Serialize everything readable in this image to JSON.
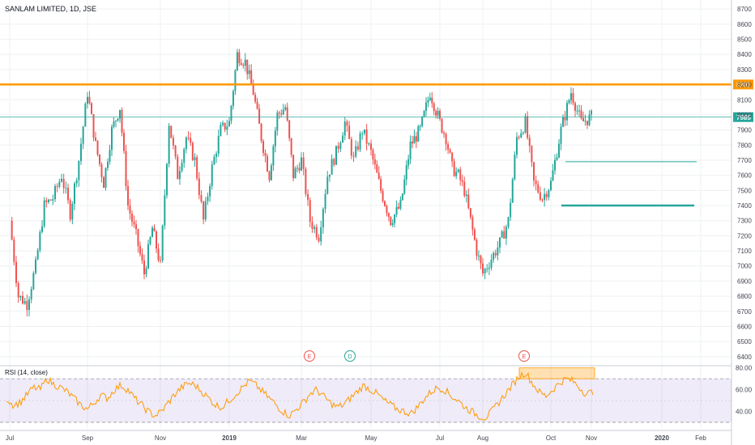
{
  "header": {
    "symbol_title": "SANLAM LIMITED, 1D, JSE"
  },
  "colors": {
    "up": "#26a69a",
    "down": "#ef5350",
    "resistance": "#ff9800",
    "support": "#26a69a",
    "rsi_line": "#ff9800",
    "rsi_band": "#7e57c2",
    "grid": "#eef0f3",
    "last_price_line": "#26a69a"
  },
  "chart_data": [
    {
      "type": "candlestick",
      "title": "SANLAM LIMITED, 1D, JSE",
      "y_ticks": [
        "8700",
        "8600",
        "8500",
        "8400",
        "8300",
        "8200",
        "8100",
        "8000",
        "7900",
        "7800",
        "7700",
        "7600",
        "7500",
        "7400",
        "7300",
        "7200",
        "7100",
        "7000",
        "6900",
        "6800",
        "6700",
        "6600",
        "6500",
        "6400"
      ],
      "ylim": [
        6340,
        8760
      ],
      "x_ticks": [
        "Jul",
        "Sep",
        "Nov",
        "2019",
        "Mar",
        "May",
        "Jul",
        "Aug",
        "Oct",
        "Nov",
        "2020",
        "Feb"
      ],
      "close_path": [
        [
          "Jul",
          7300
        ],
        [
          "",
          6800
        ],
        [
          "",
          6750
        ],
        [
          "",
          7000
        ],
        [
          "",
          7400
        ],
        [
          "",
          7450
        ],
        [
          "",
          7600
        ],
        [
          "",
          7350
        ],
        [
          "",
          7700
        ],
        [
          "Sep",
          8150
        ],
        [
          "",
          7800
        ],
        [
          "",
          7550
        ],
        [
          "",
          7900
        ],
        [
          "",
          8050
        ],
        [
          "",
          7400
        ],
        [
          "",
          7200
        ],
        [
          "",
          6950
        ],
        [
          "",
          7250
        ],
        [
          "Nov",
          7000
        ],
        [
          "",
          7950
        ],
        [
          "",
          7600
        ],
        [
          "",
          7850
        ],
        [
          "",
          7700
        ],
        [
          "",
          7300
        ],
        [
          "",
          7650
        ],
        [
          "",
          7900
        ],
        [
          "2019",
          7950
        ],
        [
          "",
          8400
        ],
        [
          "",
          8350
        ],
        [
          "",
          8150
        ],
        [
          "",
          7850
        ],
        [
          "",
          7600
        ],
        [
          "",
          8000
        ],
        [
          "",
          8050
        ],
        [
          "",
          7600
        ],
        [
          "Mar",
          7700
        ],
        [
          "",
          7300
        ],
        [
          "",
          7200
        ],
        [
          "",
          7600
        ],
        [
          "",
          7750
        ],
        [
          "",
          7950
        ],
        [
          "",
          7700
        ],
        [
          "",
          7900
        ],
        [
          "May",
          7750
        ],
        [
          "",
          7500
        ],
        [
          "",
          7300
        ],
        [
          "",
          7400
        ],
        [
          "",
          7800
        ],
        [
          "",
          7900
        ],
        [
          "",
          8150
        ],
        [
          "Jul",
          7950
        ],
        [
          "",
          7850
        ],
        [
          "",
          7650
        ],
        [
          "",
          7600
        ],
        [
          "",
          7500
        ],
        [
          "",
          7300
        ],
        [
          "",
          7100
        ],
        [
          "Aug",
          6950
        ],
        [
          "",
          7050
        ],
        [
          "",
          7150
        ],
        [
          "",
          7300
        ],
        [
          "",
          7850
        ],
        [
          "",
          7950
        ],
        [
          "",
          7550
        ],
        [
          "",
          7450
        ],
        [
          "Oct",
          7550
        ],
        [
          "",
          7900
        ],
        [
          "",
          8150
        ],
        [
          "",
          7950
        ],
        [
          "",
          7985
        ]
      ],
      "price_labels": {
        "resistance": "8201",
        "last": "7985"
      },
      "levels": {
        "resistance": 8201,
        "last": 7985,
        "support_upper": 7690,
        "support_lower": 7400
      },
      "events": [
        {
          "label": "E",
          "near": "Mar",
          "color": "#ef5350"
        },
        {
          "label": "D",
          "near": "May",
          "color": "#26a69a"
        },
        {
          "label": "E",
          "near": "Aug",
          "color": "#ef5350"
        }
      ]
    },
    {
      "type": "line",
      "title": "RSI (14, close)",
      "y_ticks": [
        "80.00",
        "60.00",
        "40.00"
      ],
      "ylim": [
        24,
        82
      ],
      "band": [
        30,
        70
      ],
      "highlight": "overbought zone near Oct",
      "values": [
        52,
        46,
        48,
        55,
        62,
        60,
        70,
        65,
        62,
        58,
        52,
        46,
        42,
        48,
        55,
        52,
        60,
        64,
        60,
        52,
        46,
        40,
        36,
        40,
        48,
        56,
        62,
        66,
        64,
        58,
        52,
        46,
        44,
        50,
        56,
        62,
        68,
        64,
        58,
        52,
        46,
        40,
        36,
        42,
        48,
        56,
        60,
        54,
        48,
        44,
        46,
        52,
        58,
        64,
        60,
        56,
        50,
        46,
        42,
        40,
        38,
        44,
        52,
        58,
        62,
        60,
        54,
        50,
        44,
        40,
        36,
        34,
        40,
        48,
        56,
        64,
        72,
        76,
        66,
        58,
        54,
        60,
        66,
        70,
        68,
        62,
        56,
        58
      ]
    }
  ]
}
